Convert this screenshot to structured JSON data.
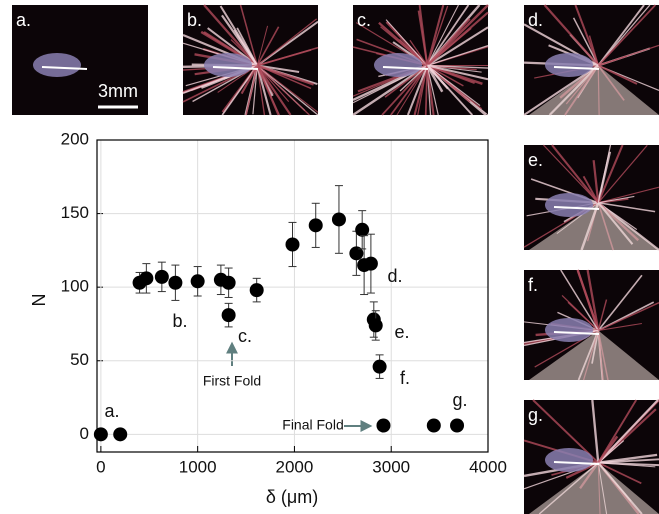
{
  "chart_data": {
    "type": "scatter",
    "x_label": "δ (μm)",
    "y_label": "N",
    "x": [
      0,
      200,
      400,
      470,
      630,
      770,
      1000,
      1240,
      1320,
      1320,
      1610,
      1980,
      2220,
      2460,
      2640,
      2700,
      2720,
      2790,
      2820,
      2840,
      2880,
      2920,
      3440,
      3680
    ],
    "series": [
      {
        "color": "#000000",
        "values": [
          0,
          0,
          103,
          106,
          107,
          103,
          104,
          105,
          103,
          81,
          98,
          129,
          142,
          146,
          123,
          139,
          115,
          116,
          78,
          74,
          46,
          6,
          6,
          6
        ],
        "errors": [
          0,
          0,
          7,
          10,
          10,
          12,
          10,
          10,
          10,
          8,
          8,
          15,
          15,
          23,
          15,
          13,
          20,
          20,
          12,
          10,
          8,
          0,
          0,
          0
        ]
      }
    ],
    "xlim": [
      -40,
      4000
    ],
    "ylim": [
      -12,
      200
    ],
    "xticks": [
      0,
      1000,
      2000,
      3000,
      4000
    ],
    "yticks": [
      0,
      50,
      100,
      150,
      200
    ],
    "grid": true,
    "annotations": [
      "a.",
      "b.",
      "c.",
      "d.",
      "e.",
      "f.",
      "g.",
      "First Fold",
      "Final Fold"
    ]
  },
  "panels": {
    "labels": [
      "a.",
      "b.",
      "c.",
      "d.",
      "e.",
      "f.",
      "g."
    ],
    "scale_bar": "3mm"
  }
}
